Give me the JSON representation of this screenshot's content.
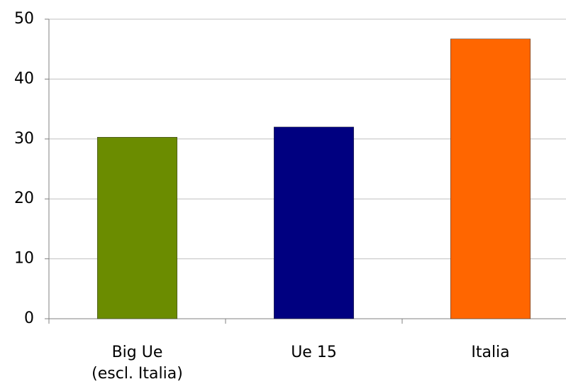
{
  "chart_data": {
    "type": "bar",
    "categories": [
      "Big Ue\n(escl. Italia)",
      "Ue 15",
      "Italia"
    ],
    "series": [
      {
        "values": [
          30.3,
          32.0,
          46.7
        ],
        "colors": [
          "#6b8c00",
          "#000080",
          "#ff6600"
        ]
      }
    ],
    "ylim": [
      0,
      50
    ],
    "yticks": [
      0,
      10,
      20,
      30,
      40,
      50
    ],
    "grid": true
  }
}
